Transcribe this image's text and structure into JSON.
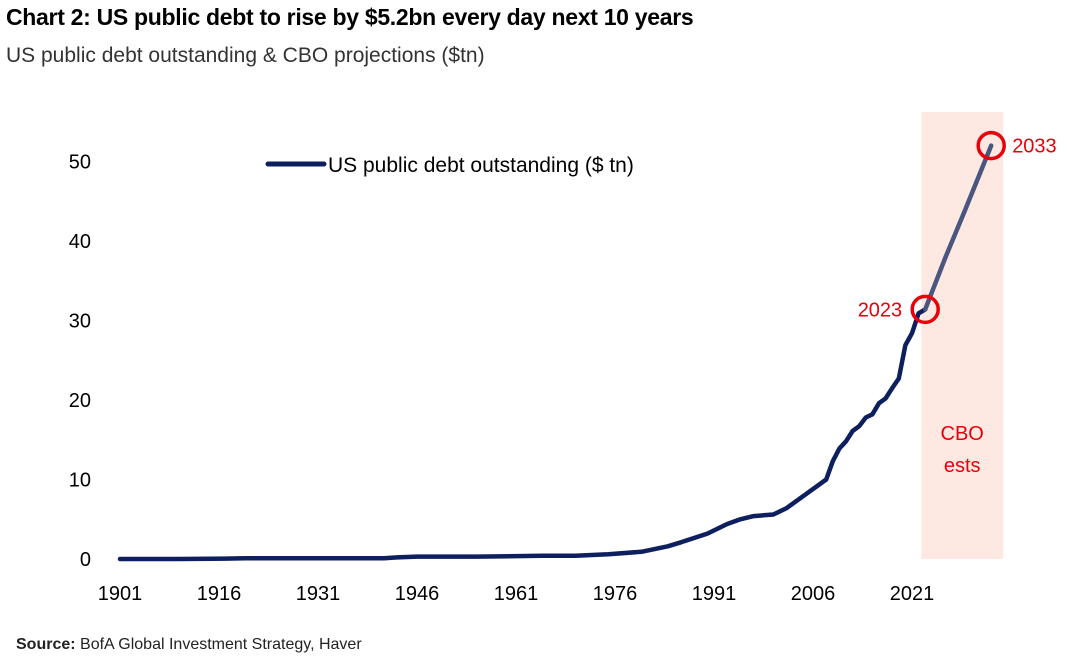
{
  "chart_data": {
    "type": "line",
    "title": "Chart 2: US public debt to rise by $5.2bn every day next 10 years",
    "subtitle": "US public debt outstanding & CBO projections ($tn)",
    "xlabel": "",
    "ylabel": "",
    "xlim": [
      1901,
      2036
    ],
    "ylim": [
      0,
      50
    ],
    "x_ticks": [
      "1901",
      "1916",
      "1931",
      "1946",
      "1961",
      "1976",
      "1991",
      "2006",
      "2021"
    ],
    "y_ticks": [
      "0",
      "10",
      "20",
      "30",
      "40",
      "50"
    ],
    "legend": {
      "position": "top-center",
      "label": "US public debt outstanding ($ tn)"
    },
    "series": [
      {
        "name": "US public debt outstanding ($ tn)",
        "color": "#0d1f5e",
        "x": [
          1901,
          1910,
          1917,
          1920,
          1930,
          1941,
          1943,
          1946,
          1955,
          1965,
          1970,
          1975,
          1980,
          1984,
          1986,
          1990,
          1993,
          1995,
          1997,
          2000,
          2002,
          2005,
          2008,
          2009,
          2010,
          2011,
          2012,
          2013,
          2014,
          2015,
          2016,
          2017,
          2018,
          2019,
          2020,
          2021,
          2022,
          2023
        ],
        "y": [
          0.0,
          0.0,
          0.05,
          0.1,
          0.1,
          0.1,
          0.2,
          0.3,
          0.3,
          0.4,
          0.4,
          0.6,
          0.9,
          1.6,
          2.1,
          3.2,
          4.4,
          5.0,
          5.4,
          5.6,
          6.4,
          8.2,
          10.0,
          12.3,
          13.9,
          14.8,
          16.1,
          16.7,
          17.8,
          18.2,
          19.6,
          20.2,
          21.5,
          22.7,
          26.9,
          28.4,
          30.9,
          31.4
        ]
      },
      {
        "name": "CBO projections",
        "color": "#4a5680",
        "x": [
          2023,
          2026,
          2029,
          2033
        ],
        "y": [
          31.4,
          37.8,
          43.8,
          52.0
        ]
      }
    ],
    "shaded_region": {
      "x": [
        2023,
        2033
      ],
      "label_lines": [
        "CBO",
        "ests"
      ],
      "color": "#fde9e1"
    },
    "annotations": [
      {
        "x": 2023,
        "y": 31.4,
        "label": "2023",
        "side": "left"
      },
      {
        "x": 2033,
        "y": 52.0,
        "label": "2033",
        "side": "right"
      }
    ]
  },
  "source": {
    "label": "Source:",
    "text": "BofA Global Investment Strategy, Haver"
  },
  "colors": {
    "annotation": "#e8000b",
    "shade": "#fde9e1",
    "line": "#0d1f5e",
    "projection": "#4a5680"
  }
}
